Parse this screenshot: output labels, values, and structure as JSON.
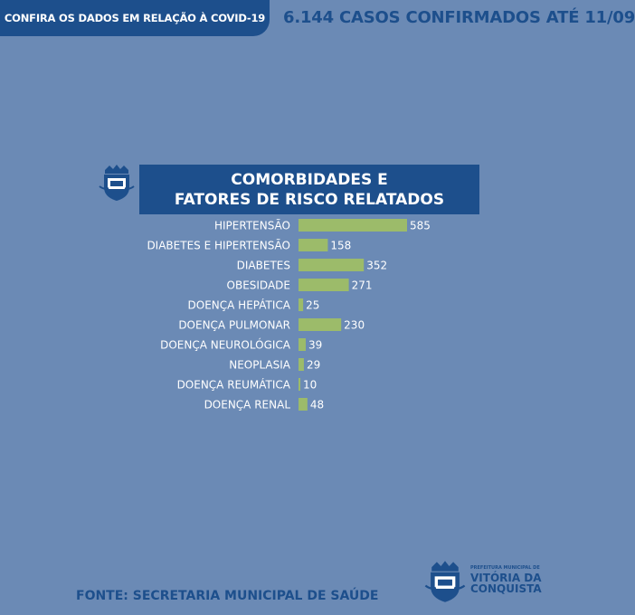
{
  "header": {
    "tab_text": "CONFIRA OS DADOS EM RELAÇÃO À COVID-19",
    "cases_text": "6.144 CASOS CONFIRMADOS ATÉ 11/09"
  },
  "chart_data": {
    "type": "bar",
    "orientation": "horizontal",
    "title_line1": "COMORBIDADES E",
    "title_line2": "FATORES DE RISCO RELATADOS",
    "categories": [
      "HIPERTENSÃO",
      "DIABETES E HIPERTENSÃO",
      "DIABETES",
      "OBESIDADE",
      "DOENÇA HEPÁTICA",
      "DOENÇA PULMONAR",
      "DOENÇA NEUROLÓGICA",
      "NEOPLASIA",
      "DOENÇA REUMÁTICA",
      "DOENÇA RENAL"
    ],
    "values": [
      585,
      158,
      352,
      271,
      25,
      230,
      39,
      29,
      10,
      48
    ],
    "value_labels": [
      "585",
      "158",
      "352",
      "271",
      "25",
      "230",
      "39",
      "29",
      "10",
      "48"
    ],
    "bar_color": "#9cbb6a",
    "grid": false
  },
  "footer": {
    "source": "FONTE: SECRETARIA MUNICIPAL DE SAÚDE",
    "logo_small": "PREFEITURA MUNICIPAL DE",
    "logo_line1": "VITÓRIA DA",
    "logo_line2": "CONQUISTA"
  },
  "colors": {
    "background": "#6b8ab5",
    "navy": "#1d4f8c",
    "bar": "#9cbb6a",
    "text": "#ffffff"
  }
}
